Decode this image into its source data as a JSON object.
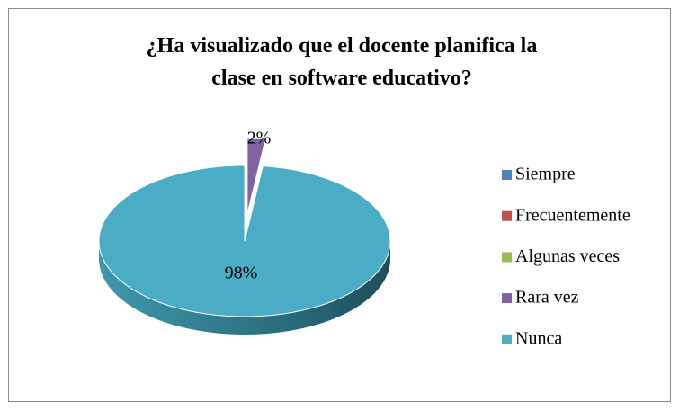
{
  "chart_data": {
    "type": "pie",
    "title": "¿Ha visualizado que el docente planifica la clase en software educativo?",
    "categories": [
      "Siempre",
      "Frecuentemente",
      "Algunas veces",
      "Rara vez",
      "Nunca"
    ],
    "values": [
      0,
      0,
      0,
      2,
      98
    ],
    "value_labels": [
      null,
      null,
      null,
      "2%",
      "98%"
    ],
    "colors": [
      "#4f81bd",
      "#c0504d",
      "#9bbb59",
      "#8064a2",
      "#4bacc6"
    ],
    "legend": "right"
  }
}
